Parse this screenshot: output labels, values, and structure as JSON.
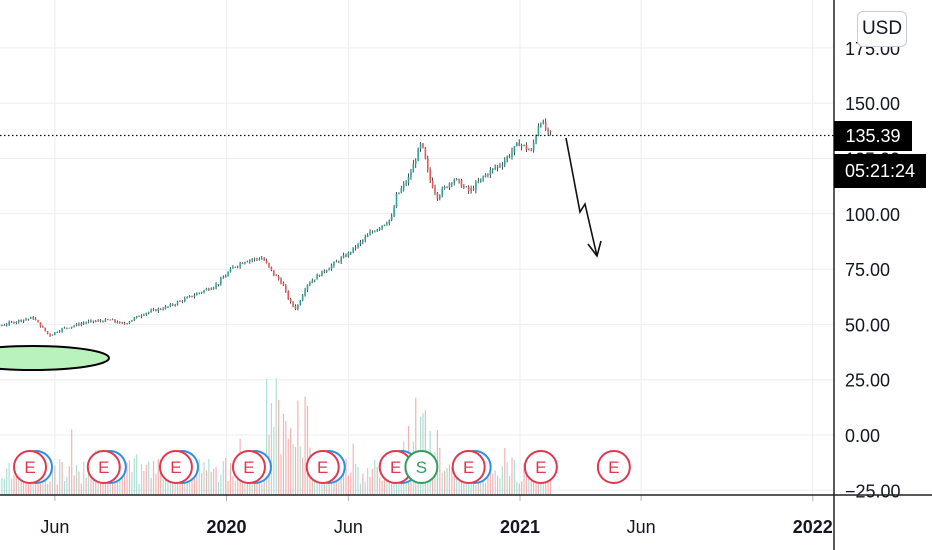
{
  "currency_button": "USD",
  "current_price": "135.39",
  "countdown": "05:21:24",
  "colors": {
    "up": "#26a69a",
    "down": "#ef5350",
    "price_line": "#000000",
    "earnings": "#e0394f",
    "dividend": "#2e9f5e",
    "split_blue": "#2b8fe3",
    "ellipse_fill": "#b9f2bd"
  },
  "chart_data": {
    "type": "line",
    "title": "",
    "xlabel": "",
    "ylabel": "",
    "ylim": [
      -25,
      185
    ],
    "y_ticks": [
      "175.00",
      "150.00",
      "125.00",
      "100.00",
      "75.00",
      "50.00",
      "25.00",
      "0.00",
      "−25.00"
    ],
    "y_tick_values": [
      175,
      150,
      125,
      100,
      75,
      50,
      25,
      0,
      -25
    ],
    "x_ticks": [
      {
        "label": "Jun",
        "date": "2019-06-01",
        "bold": false
      },
      {
        "label": "2020",
        "date": "2020-01-01",
        "bold": true
      },
      {
        "label": "Jun",
        "date": "2020-06-01",
        "bold": false
      },
      {
        "label": "2021",
        "date": "2021-01-01",
        "bold": true
      },
      {
        "label": "Jun",
        "date": "2021-06-01",
        "bold": false
      },
      {
        "label": "2022",
        "date": "2022-01-01",
        "bold": true
      }
    ],
    "xrange": [
      "2019-01-20",
      "2022-01-30"
    ],
    "series": [
      {
        "values": [
          [
            "2019-01-20",
            46
          ],
          [
            "2019-02-20",
            48
          ],
          [
            "2019-03-20",
            49
          ],
          [
            "2019-04-20",
            52
          ],
          [
            "2019-05-05",
            53
          ],
          [
            "2019-05-25",
            45
          ],
          [
            "2019-06-10",
            48
          ],
          [
            "2019-07-10",
            51
          ],
          [
            "2019-08-10",
            52
          ],
          [
            "2019-08-25",
            50
          ],
          [
            "2019-09-20",
            55
          ],
          [
            "2019-10-20",
            58
          ],
          [
            "2019-11-20",
            63
          ],
          [
            "2019-12-20",
            68
          ],
          [
            "2020-01-10",
            76
          ],
          [
            "2020-01-25",
            79
          ],
          [
            "2020-02-15",
            80
          ],
          [
            "2020-02-28",
            73
          ],
          [
            "2020-03-10",
            69
          ],
          [
            "2020-03-20",
            60
          ],
          [
            "2020-03-28",
            57
          ],
          [
            "2020-04-10",
            68
          ],
          [
            "2020-05-01",
            74
          ],
          [
            "2020-06-01",
            82
          ],
          [
            "2020-07-01",
            92
          ],
          [
            "2020-07-25",
            98
          ],
          [
            "2020-07-31",
            108
          ],
          [
            "2020-08-15",
            116
          ],
          [
            "2020-08-31",
            132
          ],
          [
            "2020-09-10",
            116
          ],
          [
            "2020-09-20",
            108
          ],
          [
            "2020-10-10",
            116
          ],
          [
            "2020-10-30",
            110
          ],
          [
            "2020-11-20",
            118
          ],
          [
            "2020-12-10",
            123
          ],
          [
            "2020-12-31",
            132
          ],
          [
            "2021-01-15",
            128
          ],
          [
            "2021-01-26",
            143
          ],
          [
            "2021-02-05",
            136
          ],
          [
            "2021-02-10",
            135.39
          ]
        ]
      }
    ],
    "current_price": 135.39,
    "volume_ticks": [
      "2019-02",
      "2019-05",
      "2019-08",
      "2019-11",
      "2020-02",
      "2020-05",
      "2020-08",
      "2020-11",
      "2021-02",
      "2021-04"
    ],
    "events": [
      {
        "label": "E",
        "date": "2019-05-01",
        "kind": "earnings"
      },
      {
        "label": "E",
        "date": "2019-08-01",
        "kind": "earnings"
      },
      {
        "label": "E",
        "date": "2019-10-30",
        "kind": "earnings"
      },
      {
        "label": "E",
        "date": "2020-01-29",
        "kind": "earnings"
      },
      {
        "label": "E",
        "date": "2020-04-30",
        "kind": "earnings"
      },
      {
        "label": "E",
        "date": "2020-07-30",
        "kind": "earnings"
      },
      {
        "label": "S",
        "date": "2020-08-31",
        "kind": "split"
      },
      {
        "label": "E",
        "date": "2020-10-29",
        "kind": "earnings"
      },
      {
        "label": "E",
        "date": "2021-01-27",
        "kind": "earnings"
      },
      {
        "label": "E",
        "date": "2021-04-28",
        "kind": "earnings"
      }
    ]
  }
}
